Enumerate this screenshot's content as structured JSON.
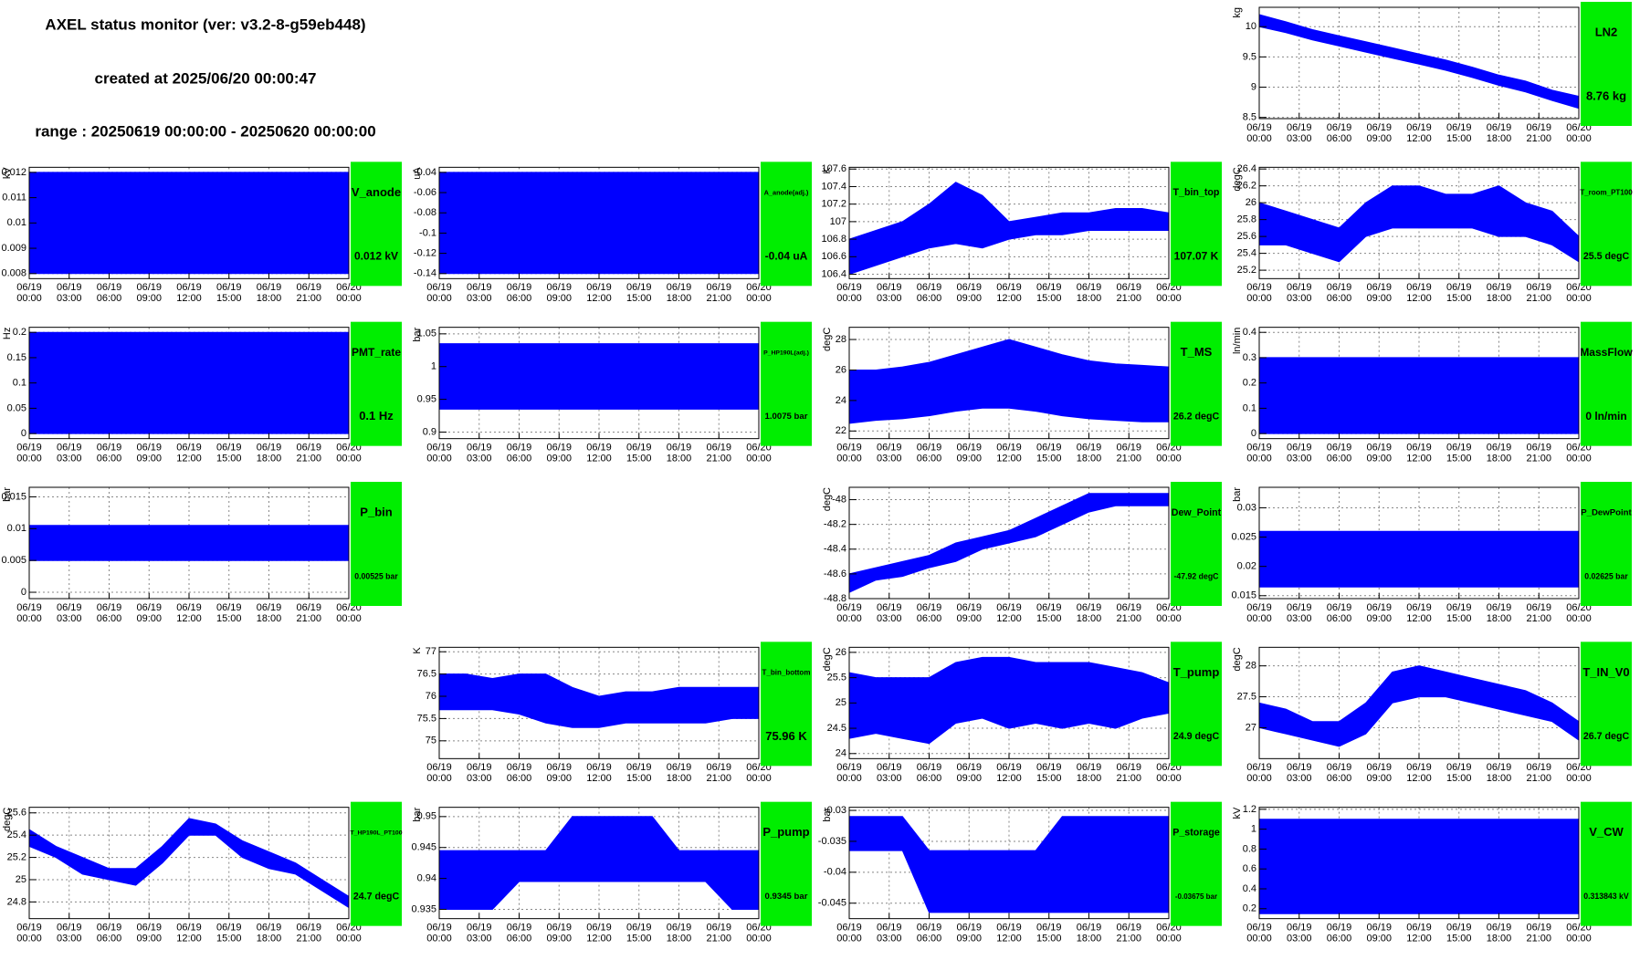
{
  "header": {
    "title": "AXEL status monitor (ver: v3.2-8-g59eb448)",
    "created": "created at 2025/06/20 00:00:47",
    "range": "range : 20250619 00:00:00 - 20250620 00:00:00"
  },
  "time_axis": {
    "x": [
      0,
      2,
      4,
      6,
      8,
      10,
      12,
      14,
      16,
      18,
      20,
      22,
      24
    ],
    "xlim": [
      0,
      24
    ],
    "xticks": [
      {
        "value": 0,
        "label": [
          "06/19",
          "00:00"
        ]
      },
      {
        "value": 3,
        "label": [
          "06/19",
          "03:00"
        ]
      },
      {
        "value": 6,
        "label": [
          "06/19",
          "06:00"
        ]
      },
      {
        "value": 9,
        "label": [
          "06/19",
          "09:00"
        ]
      },
      {
        "value": 12,
        "label": [
          "06/19",
          "12:00"
        ]
      },
      {
        "value": 15,
        "label": [
          "06/19",
          "15:00"
        ]
      },
      {
        "value": 18,
        "label": [
          "06/19",
          "18:00"
        ]
      },
      {
        "value": 21,
        "label": [
          "06/19",
          "21:00"
        ]
      },
      {
        "value": 24,
        "label": [
          "06/20",
          "00:00"
        ]
      }
    ]
  },
  "chart_data": [
    {
      "type": "range-area",
      "title": "LN2",
      "status": "8.76 kg",
      "ylabel": "kg",
      "color": "#0000ff",
      "grid": true,
      "ylim": [
        8.48,
        10.32
      ],
      "yticks": [
        8.5,
        9,
        9.5,
        10
      ],
      "high": [
        10.2,
        10.08,
        9.95,
        9.85,
        9.75,
        9.65,
        9.55,
        9.45,
        9.33,
        9.2,
        9.1,
        8.95,
        8.85
      ],
      "low": [
        10.0,
        9.9,
        9.78,
        9.68,
        9.58,
        9.48,
        9.38,
        9.28,
        9.16,
        9.03,
        8.92,
        8.78,
        8.65
      ]
    },
    {
      "type": "range-area",
      "title": "V_anode",
      "status": "0.012 kV",
      "ylabel": "kV",
      "color": "#0000ff",
      "grid": true,
      "ylim": [
        0.0078,
        0.0122
      ],
      "yticks": [
        0.008,
        0.009,
        0.01,
        0.011,
        0.012
      ],
      "high": [
        0.012,
        0.012,
        0.012,
        0.012,
        0.012,
        0.012,
        0.012,
        0.012,
        0.012,
        0.012,
        0.012,
        0.012,
        0.012
      ],
      "low": [
        0.008,
        0.008,
        0.008,
        0.008,
        0.008,
        0.008,
        0.008,
        0.008,
        0.008,
        0.008,
        0.008,
        0.008,
        0.008
      ]
    },
    {
      "type": "range-area",
      "title": "A_anode(adj.)",
      "status": "-0.04 uA",
      "ylabel": "uA",
      "color": "#0000ff",
      "grid": true,
      "ylim": [
        -0.145,
        -0.035
      ],
      "yticks": [
        -0.14,
        -0.12,
        -0.1,
        -0.08,
        -0.06,
        -0.04
      ],
      "high": [
        -0.04,
        -0.04,
        -0.04,
        -0.04,
        -0.04,
        -0.04,
        -0.04,
        -0.04,
        -0.04,
        -0.04,
        -0.04,
        -0.04,
        -0.04
      ],
      "low": [
        -0.14,
        -0.14,
        -0.14,
        -0.14,
        -0.14,
        -0.14,
        -0.14,
        -0.14,
        -0.14,
        -0.14,
        -0.14,
        -0.14,
        -0.14
      ]
    },
    {
      "type": "range-area",
      "title": "T_bin_top",
      "status": "107.07 K",
      "ylabel": "K",
      "color": "#0000ff",
      "grid": true,
      "ylim": [
        106.35,
        107.62
      ],
      "yticks": [
        106.4,
        106.6,
        106.8,
        107,
        107.2,
        107.4,
        107.6
      ],
      "high": [
        106.8,
        106.9,
        107.0,
        107.2,
        107.45,
        107.3,
        107.0,
        107.05,
        107.1,
        107.1,
        107.15,
        107.15,
        107.1
      ],
      "low": [
        106.4,
        106.5,
        106.6,
        106.7,
        106.75,
        106.7,
        106.8,
        106.85,
        106.85,
        106.9,
        106.9,
        106.9,
        106.9
      ]
    },
    {
      "type": "range-area",
      "title": "T_room_PT100",
      "status": "25.5 degC",
      "ylabel": "degC",
      "color": "#0000ff",
      "grid": true,
      "ylim": [
        25.1,
        26.42
      ],
      "yticks": [
        25.2,
        25.4,
        25.6,
        25.8,
        26,
        26.2,
        26.4
      ],
      "high": [
        26.0,
        25.9,
        25.8,
        25.7,
        26.0,
        26.2,
        26.2,
        26.1,
        26.1,
        26.2,
        26.0,
        25.9,
        25.6
      ],
      "low": [
        25.5,
        25.5,
        25.4,
        25.3,
        25.6,
        25.7,
        25.7,
        25.7,
        25.7,
        25.6,
        25.6,
        25.5,
        25.3
      ]
    },
    {
      "type": "range-area",
      "title": "PMT_rate",
      "status": "0.1 Hz",
      "ylabel": "Hz",
      "color": "#0000ff",
      "grid": true,
      "ylim": [
        -0.01,
        0.21
      ],
      "yticks": [
        0,
        0.05,
        0.1,
        0.15,
        0.2
      ],
      "high": [
        0.2,
        0.2,
        0.2,
        0.2,
        0.2,
        0.2,
        0.2,
        0.2,
        0.2,
        0.2,
        0.2,
        0.2,
        0.2
      ],
      "low": [
        0,
        0,
        0,
        0,
        0,
        0,
        0,
        0,
        0,
        0,
        0,
        0,
        0
      ]
    },
    {
      "type": "range-area",
      "title": "P_HP190L(adj.)",
      "status": "1.0075 bar",
      "ylabel": "bar",
      "color": "#0000ff",
      "grid": true,
      "ylim": [
        0.89,
        1.06
      ],
      "yticks": [
        0.9,
        0.95,
        1,
        1.05
      ],
      "high": [
        1.035,
        1.035,
        1.035,
        1.035,
        1.035,
        1.035,
        1.035,
        1.035,
        1.035,
        1.035,
        1.035,
        1.035,
        1.035
      ],
      "low": [
        0.935,
        0.935,
        0.935,
        0.935,
        0.935,
        0.935,
        0.935,
        0.935,
        0.935,
        0.935,
        0.935,
        0.935,
        0.935
      ]
    },
    {
      "type": "range-area",
      "title": "T_MS",
      "status": "26.2 degC",
      "ylabel": "degC",
      "color": "#0000ff",
      "grid": true,
      "ylim": [
        21.5,
        28.8
      ],
      "yticks": [
        22,
        24,
        26,
        28
      ],
      "high": [
        26.0,
        26.0,
        26.2,
        26.5,
        27.0,
        27.5,
        28.0,
        27.5,
        27.0,
        26.6,
        26.4,
        26.3,
        26.2
      ],
      "low": [
        22.5,
        22.7,
        22.8,
        23.0,
        23.3,
        23.5,
        23.5,
        23.3,
        23.0,
        22.8,
        22.7,
        22.6,
        22.6
      ]
    },
    {
      "type": "range-area",
      "title": "MassFlow",
      "status": "0 ln/min",
      "ylabel": "ln/min",
      "color": "#0000ff",
      "grid": true,
      "ylim": [
        -0.02,
        0.42
      ],
      "yticks": [
        0,
        0.1,
        0.2,
        0.3,
        0.4
      ],
      "high": [
        0.3,
        0.3,
        0.3,
        0.3,
        0.3,
        0.3,
        0.3,
        0.3,
        0.3,
        0.3,
        0.3,
        0.3,
        0.3
      ],
      "low": [
        0,
        0,
        0,
        0,
        0,
        0,
        0,
        0,
        0,
        0,
        0,
        0,
        0
      ]
    },
    {
      "type": "range-area",
      "title": "P_bin",
      "status": "0.00525 bar",
      "ylabel": "bar",
      "color": "#0000ff",
      "grid": true,
      "ylim": [
        -0.001,
        0.0165
      ],
      "yticks": [
        0,
        0.005,
        0.01,
        0.015
      ],
      "high": [
        0.0105,
        0.0105,
        0.0105,
        0.0105,
        0.0105,
        0.0105,
        0.0105,
        0.0105,
        0.0105,
        0.0105,
        0.0105,
        0.0105,
        0.0105
      ],
      "low": [
        0.005,
        0.005,
        0.005,
        0.005,
        0.005,
        0.005,
        0.005,
        0.005,
        0.005,
        0.005,
        0.005,
        0.005,
        0.005
      ]
    },
    {
      "type": "range-area",
      "title": "Dew_Point",
      "status": "-47.92 degC",
      "ylabel": "degC",
      "color": "#0000ff",
      "grid": true,
      "ylim": [
        -48.8,
        -47.9
      ],
      "yticks": [
        -48.8,
        -48.6,
        -48.4,
        -48.2,
        -48
      ],
      "high": [
        -48.6,
        -48.55,
        -48.5,
        -48.45,
        -48.35,
        -48.3,
        -48.25,
        -48.15,
        -48.05,
        -47.95,
        -47.95,
        -47.95,
        -47.95
      ],
      "low": [
        -48.75,
        -48.65,
        -48.62,
        -48.55,
        -48.5,
        -48.4,
        -48.35,
        -48.3,
        -48.2,
        -48.1,
        -48.05,
        -48.05,
        -48.05
      ]
    },
    {
      "type": "range-area",
      "title": "P_DewPoint",
      "status": "0.02625 bar",
      "ylabel": "bar",
      "color": "#0000ff",
      "grid": true,
      "ylim": [
        0.0145,
        0.0335
      ],
      "yticks": [
        0.015,
        0.02,
        0.025,
        0.03
      ],
      "high": [
        0.026,
        0.026,
        0.026,
        0.026,
        0.026,
        0.026,
        0.026,
        0.026,
        0.026,
        0.026,
        0.026,
        0.026,
        0.026
      ],
      "low": [
        0.0165,
        0.0165,
        0.0165,
        0.0165,
        0.0165,
        0.0165,
        0.0165,
        0.0165,
        0.0165,
        0.0165,
        0.0165,
        0.0165,
        0.0165
      ]
    },
    {
      "type": "range-area",
      "title": "T_bin_bottom",
      "status": "75.96 K",
      "ylabel": "K",
      "color": "#0000ff",
      "grid": true,
      "ylim": [
        74.6,
        77.1
      ],
      "yticks": [
        75,
        75.5,
        76,
        76.5,
        77
      ],
      "high": [
        76.5,
        76.5,
        76.4,
        76.5,
        76.5,
        76.2,
        76.0,
        76.1,
        76.1,
        76.2,
        76.2,
        76.2,
        76.2
      ],
      "low": [
        75.7,
        75.7,
        75.7,
        75.6,
        75.4,
        75.3,
        75.3,
        75.4,
        75.4,
        75.4,
        75.4,
        75.5,
        75.5
      ]
    },
    {
      "type": "range-area",
      "title": "T_pump",
      "status": "24.9 degC",
      "ylabel": "degC",
      "color": "#0000ff",
      "grid": true,
      "ylim": [
        23.9,
        26.1
      ],
      "yticks": [
        24,
        24.5,
        25,
        25.5,
        26
      ],
      "high": [
        25.6,
        25.5,
        25.5,
        25.5,
        25.8,
        25.9,
        25.9,
        25.8,
        25.8,
        25.8,
        25.7,
        25.6,
        25.4
      ],
      "low": [
        24.3,
        24.4,
        24.3,
        24.2,
        24.6,
        24.7,
        24.5,
        24.6,
        24.5,
        24.6,
        24.5,
        24.7,
        24.8
      ]
    },
    {
      "type": "range-area",
      "title": "T_IN_V0",
      "status": "26.7 degC",
      "ylabel": "degC",
      "color": "#0000ff",
      "grid": true,
      "ylim": [
        26.5,
        28.3
      ],
      "yticks": [
        27,
        27.5,
        28
      ],
      "high": [
        27.4,
        27.3,
        27.1,
        27.1,
        27.4,
        27.9,
        28.0,
        27.9,
        27.8,
        27.7,
        27.6,
        27.4,
        27.1
      ],
      "low": [
        27.0,
        26.9,
        26.8,
        26.7,
        26.9,
        27.4,
        27.5,
        27.5,
        27.4,
        27.3,
        27.2,
        27.1,
        26.8
      ]
    },
    {
      "type": "range-area",
      "title": "T_HP190L_PT100",
      "status": "24.7 degC",
      "ylabel": "degC",
      "color": "#0000ff",
      "grid": true,
      "ylim": [
        24.65,
        25.65
      ],
      "yticks": [
        24.8,
        25,
        25.2,
        25.4,
        25.6
      ],
      "high": [
        25.45,
        25.3,
        25.2,
        25.1,
        25.1,
        25.3,
        25.55,
        25.5,
        25.35,
        25.25,
        25.15,
        25.0,
        24.85
      ],
      "low": [
        25.3,
        25.2,
        25.05,
        25.0,
        24.95,
        25.15,
        25.4,
        25.4,
        25.2,
        25.1,
        25.05,
        24.9,
        24.75
      ]
    },
    {
      "type": "range-area",
      "title": "P_pump",
      "status": "0.9345 bar",
      "ylabel": "bar",
      "color": "#0000ff",
      "grid": true,
      "ylim": [
        0.9335,
        0.9515
      ],
      "yticks": [
        0.935,
        0.94,
        0.945,
        0.95
      ],
      "high": [
        0.9445,
        0.9445,
        0.9445,
        0.9445,
        0.9445,
        0.95,
        0.95,
        0.95,
        0.95,
        0.9445,
        0.9445,
        0.9445,
        0.9445
      ],
      "low": [
        0.935,
        0.935,
        0.935,
        0.9395,
        0.9395,
        0.9395,
        0.9395,
        0.9395,
        0.9395,
        0.9395,
        0.9395,
        0.935,
        0.935
      ]
    },
    {
      "type": "range-area",
      "title": "P_storage",
      "status": "-0.03675 bar",
      "ylabel": "bar",
      "color": "#0000ff",
      "grid": true,
      "ylim": [
        -0.0475,
        -0.0295
      ],
      "yticks": [
        -0.045,
        -0.04,
        -0.035,
        -0.03
      ],
      "high": [
        -0.031,
        -0.031,
        -0.031,
        -0.0365,
        -0.0365,
        -0.0365,
        -0.0365,
        -0.0365,
        -0.031,
        -0.031,
        -0.031,
        -0.031,
        -0.031
      ],
      "low": [
        -0.0365,
        -0.0365,
        -0.0365,
        -0.0465,
        -0.0465,
        -0.0465,
        -0.0465,
        -0.0465,
        -0.0465,
        -0.0465,
        -0.0465,
        -0.0465,
        -0.0465
      ]
    },
    {
      "type": "range-area",
      "title": "V_CW",
      "status": "0.313843 kV",
      "ylabel": "kV",
      "color": "#0000ff",
      "grid": true,
      "ylim": [
        0.1,
        1.22
      ],
      "yticks": [
        0.2,
        0.4,
        0.6,
        0.8,
        1,
        1.2
      ],
      "high": [
        1.1,
        1.1,
        1.1,
        1.1,
        1.1,
        1.1,
        1.1,
        1.1,
        1.1,
        1.1,
        1.1,
        1.1,
        1.1
      ],
      "low": [
        0.15,
        0.15,
        0.15,
        0.15,
        0.15,
        0.15,
        0.15,
        0.15,
        0.15,
        0.15,
        0.15,
        0.15,
        0.15
      ]
    }
  ]
}
